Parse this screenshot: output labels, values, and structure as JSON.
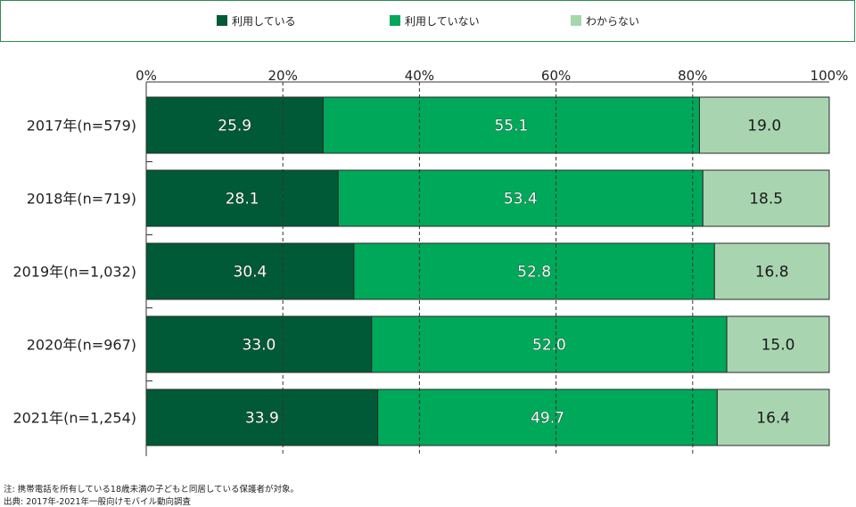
{
  "chart_data": {
    "type": "bar",
    "orientation": "horizontal",
    "stacked": true,
    "categories": [
      "2017年(n=579)",
      "2018年(n=719)",
      "2019年(n=1,032)",
      "2020年(n=967)",
      "2021年(n=1,254)"
    ],
    "series": [
      {
        "name": "利用している",
        "values": [
          25.9,
          28.1,
          30.4,
          33.0,
          33.9
        ],
        "labels": [
          "25.9",
          "28.1",
          "30.4",
          "33.0",
          "33.9"
        ],
        "color": "#005a37"
      },
      {
        "name": "利用していない",
        "values": [
          55.1,
          53.4,
          52.8,
          52.0,
          49.7
        ],
        "labels": [
          "55.1",
          "53.4",
          "52.8",
          "52.0",
          "49.7"
        ],
        "color": "#00a85a"
      },
      {
        "name": "わからない",
        "values": [
          19.0,
          18.5,
          16.8,
          15.0,
          16.4
        ],
        "labels": [
          "19.0",
          "18.5",
          "16.8",
          "15.0",
          "16.4"
        ],
        "color": "#a8d5b0"
      }
    ],
    "xlim": [
      0,
      100
    ],
    "x_ticks": [
      0,
      20,
      40,
      60,
      80,
      100
    ],
    "x_tick_labels": [
      "0%",
      "20%",
      "40%",
      "60%",
      "80%",
      "100%"
    ],
    "grid": true,
    "legend_position": "top"
  },
  "notes": {
    "note": "注: 携帯電話を所有している18歳未満の子どもと同居している保護者が対象。",
    "source": "出典: 2017年-2021年一般向けモバイル動向調査"
  }
}
